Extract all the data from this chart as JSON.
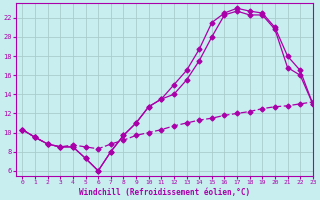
{
  "xlabel": "Windchill (Refroidissement éolien,°C)",
  "bg_color": "#c8eef0",
  "line_color": "#aa00aa",
  "grid_color": "#aacccc",
  "curve1_x": [
    0,
    1,
    2,
    3,
    4,
    5,
    6,
    7,
    8,
    9,
    10,
    11,
    12,
    13,
    14,
    15,
    16,
    17,
    18,
    19,
    20,
    21,
    22,
    23
  ],
  "curve1_y": [
    10.3,
    9.5,
    8.8,
    8.5,
    8.5,
    7.3,
    6.0,
    8.0,
    9.7,
    11.0,
    12.7,
    13.5,
    15.0,
    16.5,
    18.7,
    21.5,
    22.5,
    23.0,
    22.7,
    22.5,
    21.0,
    18.0,
    16.5,
    13.0
  ],
  "curve2_x": [
    0,
    1,
    2,
    3,
    4,
    5,
    6,
    7,
    8,
    9,
    10,
    11,
    12,
    13,
    14,
    15,
    16,
    17,
    18,
    19,
    20,
    21,
    22,
    23
  ],
  "curve2_y": [
    10.3,
    9.5,
    8.8,
    8.5,
    8.5,
    7.3,
    6.0,
    8.0,
    9.7,
    11.0,
    12.7,
    13.5,
    14.0,
    15.5,
    17.5,
    20.0,
    22.3,
    22.7,
    22.3,
    22.3,
    20.8,
    16.8,
    16.0,
    13.0
  ],
  "curve3_x": [
    0,
    1,
    2,
    3,
    4,
    5,
    6,
    7,
    8,
    9,
    10,
    11,
    12,
    13,
    14,
    15,
    16,
    17,
    18,
    19,
    20,
    21,
    22,
    23
  ],
  "curve3_y": [
    10.3,
    9.5,
    8.8,
    8.5,
    8.7,
    8.5,
    8.3,
    8.8,
    9.2,
    9.7,
    10.0,
    10.3,
    10.7,
    11.0,
    11.3,
    11.5,
    11.8,
    12.0,
    12.2,
    12.5,
    12.7,
    12.8,
    13.0,
    13.2
  ],
  "xlim": [
    -0.5,
    23
  ],
  "ylim": [
    5.5,
    23.5
  ],
  "xticks": [
    0,
    1,
    2,
    3,
    4,
    5,
    6,
    7,
    8,
    9,
    10,
    11,
    12,
    13,
    14,
    15,
    16,
    17,
    18,
    19,
    20,
    21,
    22,
    23
  ],
  "yticks": [
    6,
    8,
    10,
    12,
    14,
    16,
    18,
    20,
    22
  ]
}
